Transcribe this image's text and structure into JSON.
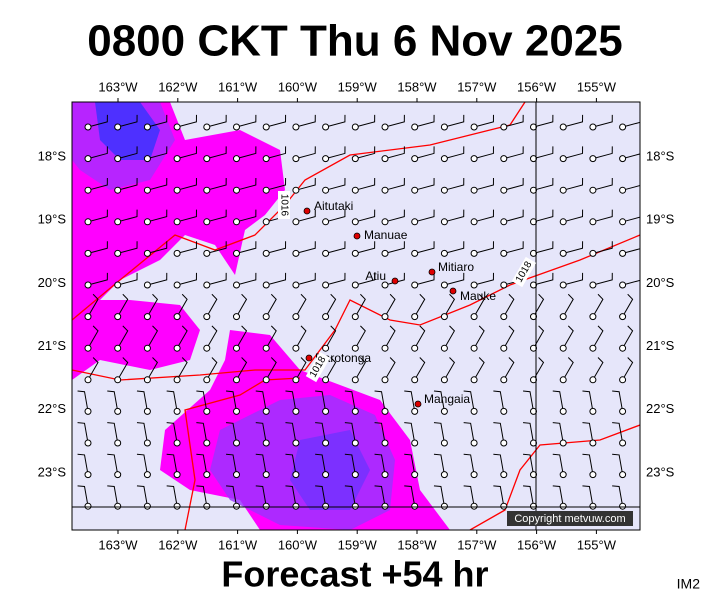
{
  "title": "0800 CKT Thu 6 Nov 2025",
  "longitude_labels": [
    "163°W",
    "162°W",
    "161°W",
    "160°W",
    "159°W",
    "158°W",
    "157°W",
    "156°W",
    "155°W"
  ],
  "latitude_labels": [
    "18°S",
    "19°S",
    "20°S",
    "21°S",
    "22°S",
    "23°S"
  ],
  "places": [
    "Aitutaki",
    "Manuae",
    "Atiu",
    "Mitiaro",
    "Mauke",
    "Rarotonga",
    "Mangaia"
  ],
  "isobar_labels": [
    "1016",
    "1018",
    "1018"
  ],
  "copyright": "Copyright metvuw.com",
  "forecast": "Forecast +54 hr",
  "image_id": "IM2"
}
